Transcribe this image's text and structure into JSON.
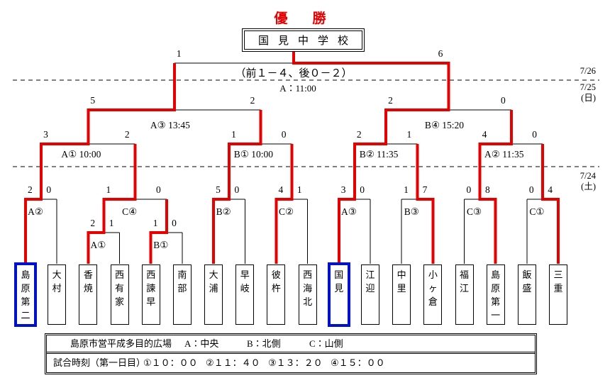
{
  "title": "優　勝",
  "champion": "国見中学校",
  "final_note": "（前１－４、後０－２）",
  "dates": {
    "day3": "7/26",
    "day2": "7/25",
    "day2_dow": "(日)",
    "day1": "7/24",
    "day1_dow": "(土)"
  },
  "colors": {
    "path_red": "#e60000",
    "finalist_blue": "#0011cc",
    "line_black": "#000000",
    "title_red": "#e60000"
  },
  "teams": [
    {
      "name": "島原第二",
      "finalist": true
    },
    {
      "name": "大村",
      "finalist": false
    },
    {
      "name": "香焼",
      "finalist": false
    },
    {
      "name": "西有家",
      "finalist": false
    },
    {
      "name": "西諫早",
      "finalist": false
    },
    {
      "name": "南部",
      "finalist": false
    },
    {
      "name": "大浦",
      "finalist": false
    },
    {
      "name": "早岐",
      "finalist": false
    },
    {
      "name": "彼杵",
      "finalist": false
    },
    {
      "name": "西海北",
      "finalist": false
    },
    {
      "name": "国見",
      "finalist": true
    },
    {
      "name": "江迎",
      "finalist": false
    },
    {
      "name": "中里",
      "finalist": false
    },
    {
      "name": "小ヶ倉",
      "finalist": false
    },
    {
      "name": "福江",
      "finalist": false
    },
    {
      "name": "島原第一",
      "finalist": false
    },
    {
      "name": "飯盛",
      "finalist": false
    },
    {
      "name": "三重",
      "finalist": false
    }
  ],
  "matches": [
    {
      "id": "sub-a1",
      "round": "sub",
      "label": "A①",
      "left": {
        "team": 2
      },
      "right": {
        "team": 3
      },
      "score": [
        "2",
        "1"
      ],
      "win": "L"
    },
    {
      "id": "sub-b1",
      "round": "sub",
      "label": "B①",
      "left": {
        "team": 4
      },
      "right": {
        "team": 5
      },
      "score": [
        "1",
        "0"
      ],
      "win": "L"
    },
    {
      "id": "r1-a2",
      "round": "r1",
      "label": "A②",
      "left": {
        "team": 0
      },
      "right": {
        "team": 1
      },
      "score": [
        "2",
        "0"
      ],
      "win": "L"
    },
    {
      "id": "r1-c4",
      "round": "r1",
      "label": "C④",
      "left": {
        "match": "sub-a1"
      },
      "right": {
        "match": "sub-b1"
      },
      "score": [
        "1",
        "0"
      ],
      "win": "L"
    },
    {
      "id": "r1-b2",
      "round": "r1",
      "label": "B②",
      "left": {
        "team": 6
      },
      "right": {
        "team": 7
      },
      "score": [
        "5",
        "0"
      ],
      "win": "L"
    },
    {
      "id": "r1-c2",
      "round": "r1",
      "label": "C②",
      "left": {
        "team": 8
      },
      "right": {
        "team": 9
      },
      "score": [
        "4",
        "1"
      ],
      "win": "L"
    },
    {
      "id": "r1-a3",
      "round": "r1",
      "label": "A③",
      "left": {
        "team": 10
      },
      "right": {
        "team": 11
      },
      "score": [
        "3",
        "0"
      ],
      "win": "L"
    },
    {
      "id": "r1-b3",
      "round": "r1",
      "label": "B③",
      "left": {
        "team": 12
      },
      "right": {
        "team": 13
      },
      "score": [
        "1",
        "7"
      ],
      "win": "R"
    },
    {
      "id": "r1-c3",
      "round": "r1",
      "label": "C③",
      "left": {
        "team": 14
      },
      "right": {
        "team": 15
      },
      "score": [
        "0",
        "8"
      ],
      "win": "R"
    },
    {
      "id": "r1-c1",
      "round": "r1",
      "label": "C①",
      "left": {
        "team": 16
      },
      "right": {
        "team": 17
      },
      "score": [
        "0",
        "4"
      ],
      "win": "R"
    },
    {
      "id": "qf1",
      "round": "qf",
      "label": "A① 10:00",
      "left": {
        "match": "r1-a2"
      },
      "right": {
        "match": "r1-c4"
      },
      "score": [
        "3",
        "2"
      ],
      "win": "L"
    },
    {
      "id": "qf2",
      "round": "qf",
      "label": "B① 10:00",
      "left": {
        "match": "r1-b2"
      },
      "right": {
        "match": "r1-c2"
      },
      "score": [
        "1",
        "0"
      ],
      "win": "L"
    },
    {
      "id": "qf3",
      "round": "qf",
      "label": "B② 11:35",
      "left": {
        "match": "r1-a3"
      },
      "right": {
        "match": "r1-b3"
      },
      "score": [
        "2",
        "1"
      ],
      "win": "L"
    },
    {
      "id": "qf4",
      "round": "qf",
      "label": "A② 11:35",
      "left": {
        "match": "r1-c3"
      },
      "right": {
        "match": "r1-c1"
      },
      "score": [
        "4",
        "0"
      ],
      "win": "L"
    },
    {
      "id": "sf1",
      "round": "sf",
      "label": "A③ 13:45",
      "left": {
        "match": "qf1"
      },
      "right": {
        "match": "qf2"
      },
      "score": [
        "5",
        "2"
      ],
      "win": "L"
    },
    {
      "id": "sf2",
      "round": "sf",
      "label": "B④ 15:20",
      "left": {
        "match": "qf3"
      },
      "right": {
        "match": "qf4"
      },
      "score": [
        "2",
        "0"
      ],
      "win": "L"
    },
    {
      "id": "final",
      "round": "f",
      "label": "A：11:00",
      "left": {
        "match": "sf1"
      },
      "right": {
        "match": "sf2"
      },
      "score": [
        "1",
        "6"
      ],
      "win": "R"
    }
  ],
  "venue_table": {
    "venue": "島原市営平成多目的広場",
    "court_a": "A：中央",
    "court_b": "B：北側",
    "court_c": "C：山側",
    "schedule_label": "試合時刻（第一日目）",
    "times": [
      "①１０：００",
      "②１１：４０",
      "③１３：２０",
      "④１５：００"
    ]
  }
}
